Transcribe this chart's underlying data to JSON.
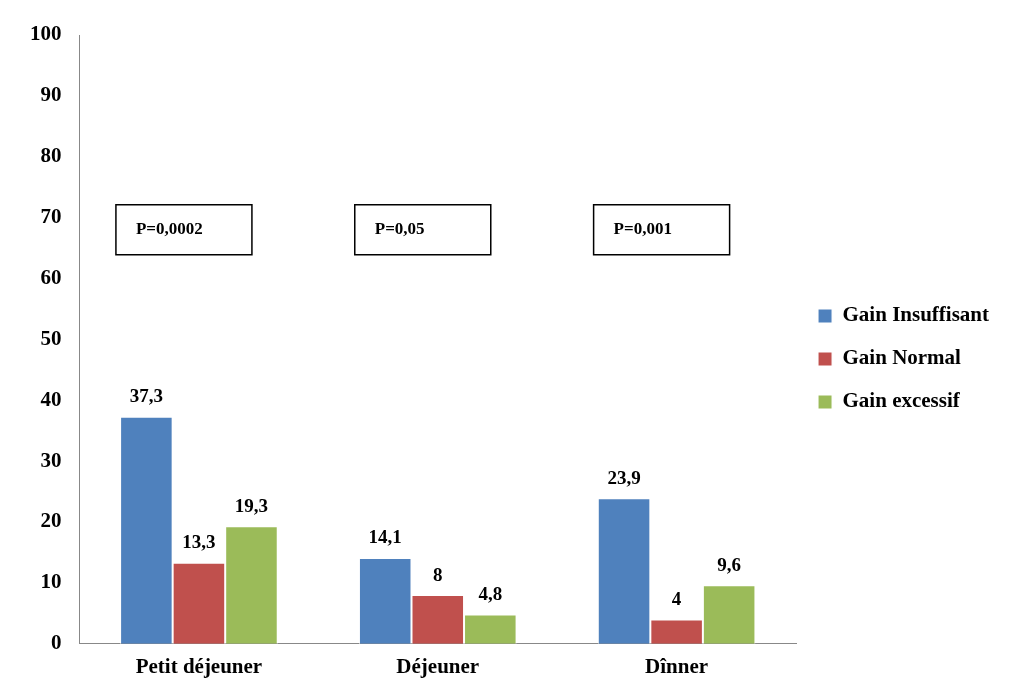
{
  "chart_data": {
    "type": "bar",
    "categories": [
      "Petit déjeuner",
      "Déjeuner",
      "Dînner"
    ],
    "series": [
      {
        "name": "Gain Insuffisant",
        "color": "#4f81bd",
        "values": [
          37.3,
          14.1,
          23.9
        ],
        "value_labels": [
          "37,3",
          "14,1",
          "23,9"
        ]
      },
      {
        "name": "Gain Normal",
        "color": "#c0504d",
        "values": [
          13.3,
          8,
          4
        ],
        "value_labels": [
          "13,3",
          "8",
          "4"
        ]
      },
      {
        "name": "Gain excessif",
        "color": "#9bbb59",
        "values": [
          19.3,
          4.8,
          9.6
        ],
        "value_labels": [
          "19,3",
          "4,8",
          "9,6"
        ]
      }
    ],
    "annotations": [
      "P=0,0002",
      "P=0,05",
      "P=0,001"
    ],
    "ylim": [
      0,
      100
    ],
    "yticks": [
      0,
      10,
      20,
      30,
      40,
      50,
      60,
      70,
      80,
      90,
      100
    ],
    "grid": false,
    "legend": "right"
  }
}
